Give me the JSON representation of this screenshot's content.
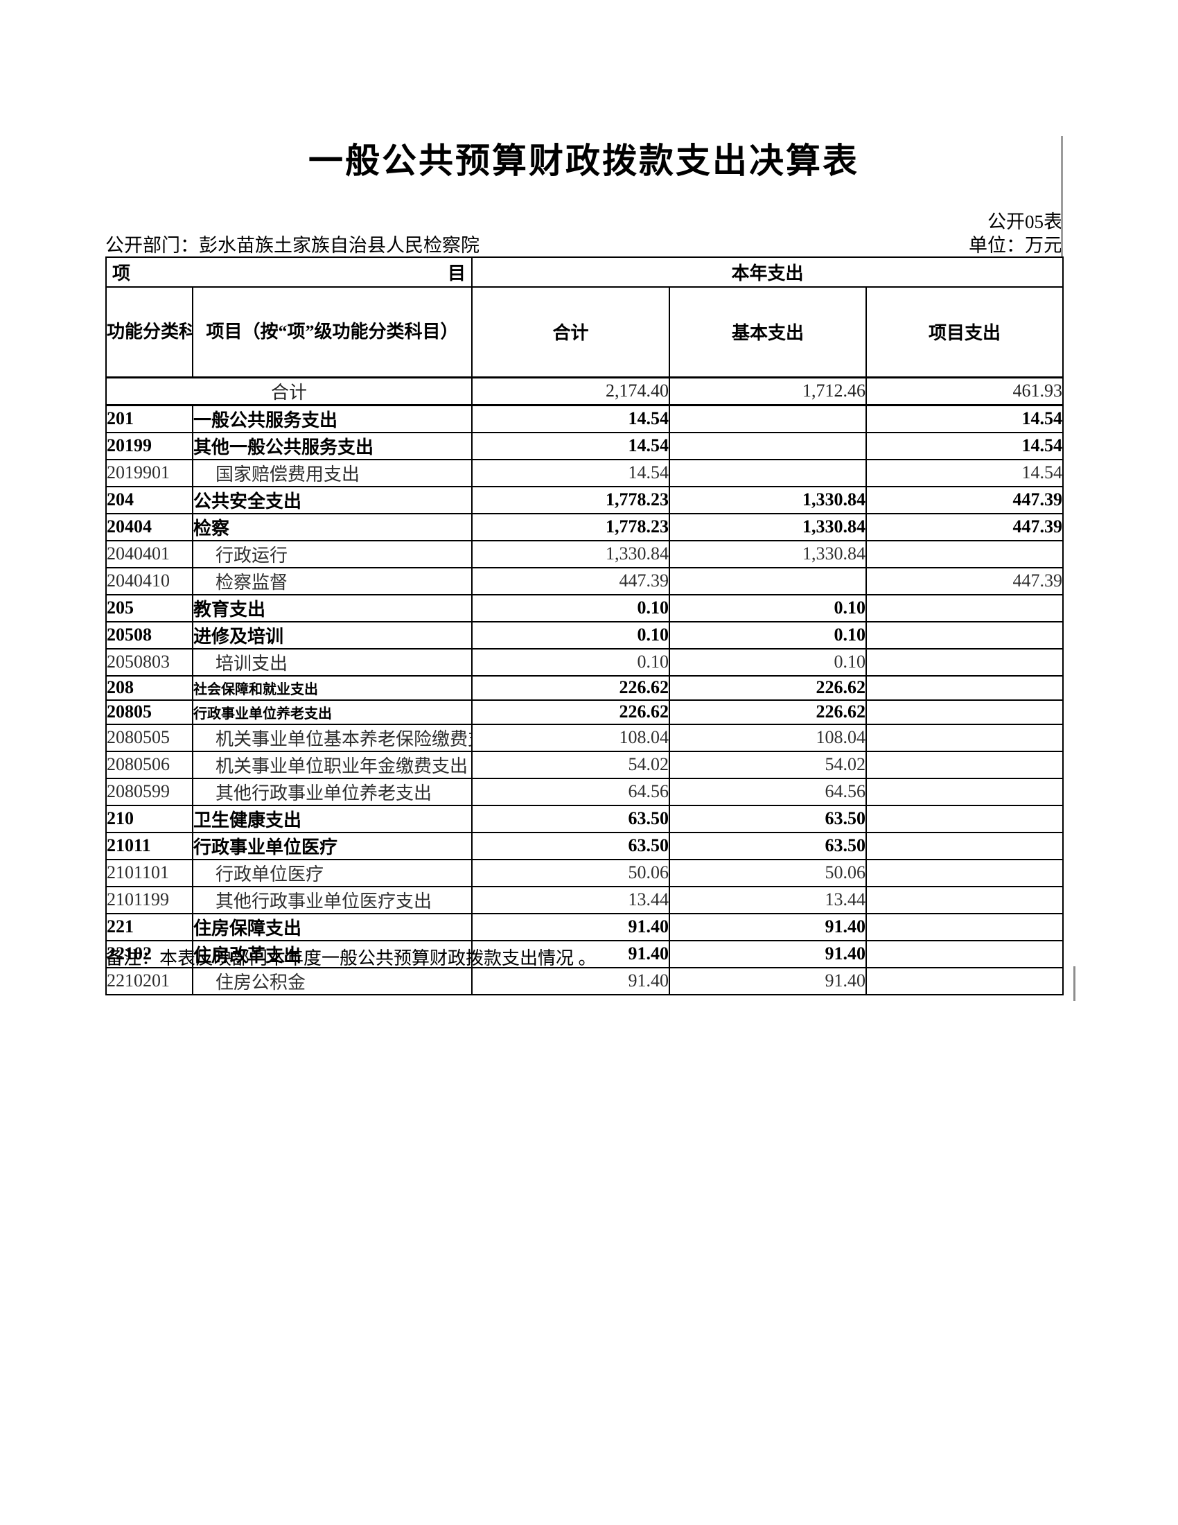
{
  "page": {
    "title": "一般公共预算财政拨款支出决算表",
    "sheet_code": "公开05表",
    "department_label": "公开部门：彭水苗族土家族自治县人民检察院",
    "unit_label": "单位：万元",
    "note": "备注：本表反映部门本年度一般公共预算财政拨款支出情况 。"
  },
  "table": {
    "header": {
      "item_left": "项",
      "item_right": "目",
      "current_year_expense": "本年支出",
      "code_col": "功能分类科目编码",
      "name_col": "项目（按“项”级功能分类科目）",
      "total_col": "合计",
      "basic_col": "基本支出",
      "project_col": "项目支出"
    },
    "rows": [
      {
        "code": "",
        "name": "合计",
        "total": "2,174.40",
        "basic": "1,712.46",
        "project": "461.93",
        "style": "grand"
      },
      {
        "code": "201",
        "name": "一般公共服务支出",
        "total": "14.54",
        "basic": "",
        "project": "14.54",
        "style": "bold"
      },
      {
        "code": "20199",
        "name": "其他一般公共服务支出",
        "total": "14.54",
        "basic": "",
        "project": "14.54",
        "style": "bold"
      },
      {
        "code": "2019901",
        "name": "国家赔偿费用支出",
        "total": "14.54",
        "basic": "",
        "project": "14.54",
        "style": "detail"
      },
      {
        "code": "204",
        "name": "公共安全支出",
        "total": "1,778.23",
        "basic": "1,330.84",
        "project": "447.39",
        "style": "bold"
      },
      {
        "code": "20404",
        "name": "检察",
        "total": "1,778.23",
        "basic": "1,330.84",
        "project": "447.39",
        "style": "bold"
      },
      {
        "code": "2040401",
        "name": "行政运行",
        "total": "1,330.84",
        "basic": "1,330.84",
        "project": "",
        "style": "detail"
      },
      {
        "code": "2040410",
        "name": "检察监督",
        "total": "447.39",
        "basic": "",
        "project": "447.39",
        "style": "detail"
      },
      {
        "code": "205",
        "name": "教育支出",
        "total": "0.10",
        "basic": "0.10",
        "project": "",
        "style": "bold"
      },
      {
        "code": "20508",
        "name": "进修及培训",
        "total": "0.10",
        "basic": "0.10",
        "project": "",
        "style": "bold"
      },
      {
        "code": "2050803",
        "name": "培训支出",
        "total": "0.10",
        "basic": "0.10",
        "project": "",
        "style": "detail"
      },
      {
        "code": "208",
        "name": "社会保障和就业支出",
        "total": "226.62",
        "basic": "226.62",
        "project": "",
        "style": "bold-small"
      },
      {
        "code": "20805",
        "name": "行政事业单位养老支出",
        "total": "226.62",
        "basic": "226.62",
        "project": "",
        "style": "bold-small"
      },
      {
        "code": "2080505",
        "name": "机关事业单位基本养老保险缴费支出",
        "total": "108.04",
        "basic": "108.04",
        "project": "",
        "style": "detail"
      },
      {
        "code": "2080506",
        "name": "机关事业单位职业年金缴费支出",
        "total": "54.02",
        "basic": "54.02",
        "project": "",
        "style": "detail"
      },
      {
        "code": "2080599",
        "name": "其他行政事业单位养老支出",
        "total": "64.56",
        "basic": "64.56",
        "project": "",
        "style": "detail"
      },
      {
        "code": "210",
        "name": "卫生健康支出",
        "total": "63.50",
        "basic": "63.50",
        "project": "",
        "style": "bold"
      },
      {
        "code": "21011",
        "name": "行政事业单位医疗",
        "total": "63.50",
        "basic": "63.50",
        "project": "",
        "style": "bold"
      },
      {
        "code": "2101101",
        "name": "行政单位医疗",
        "total": "50.06",
        "basic": "50.06",
        "project": "",
        "style": "detail"
      },
      {
        "code": "2101199",
        "name": "其他行政事业单位医疗支出",
        "total": "13.44",
        "basic": "13.44",
        "project": "",
        "style": "detail"
      },
      {
        "code": "221",
        "name": "住房保障支出",
        "total": "91.40",
        "basic": "91.40",
        "project": "",
        "style": "bold"
      },
      {
        "code": "22102",
        "name": "住房改革支出",
        "total": "91.40",
        "basic": "91.40",
        "project": "",
        "style": "bold"
      },
      {
        "code": "2210201",
        "name": "住房公积金",
        "total": "91.40",
        "basic": "91.40",
        "project": "",
        "style": "detail"
      }
    ]
  }
}
